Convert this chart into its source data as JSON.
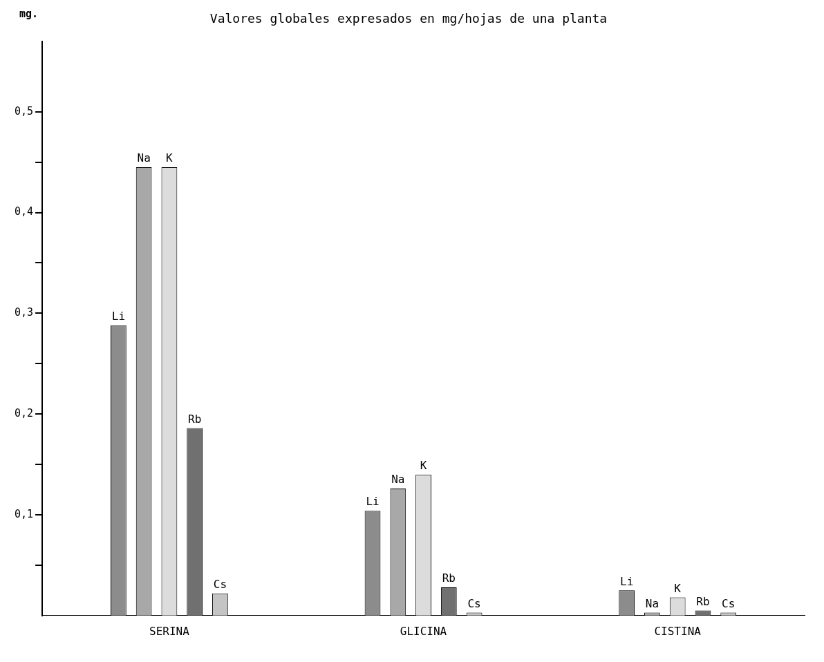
{
  "chart_data": {
    "type": "bar",
    "title": "Valores globales expresados en mg/hojas de una planta",
    "ylabel": "mg.",
    "categories": [
      "SERINA",
      "GLICINA",
      "CISTINA"
    ],
    "series": [
      {
        "name": "Li",
        "color": "#8c8c8c",
        "values": [
          0.288,
          0.104,
          0.025
        ]
      },
      {
        "name": "Na",
        "color": "#a8a8a8",
        "values": [
          0.445,
          0.126,
          0.003
        ]
      },
      {
        "name": "K",
        "color": "#dcdcdc",
        "values": [
          0.445,
          0.14,
          0.018
        ]
      },
      {
        "name": "Rb",
        "color": "#707070",
        "values": [
          0.186,
          0.028,
          0.005
        ]
      },
      {
        "name": "Cs",
        "color": "#c4c4c4",
        "values": [
          0.022,
          0.003,
          0.003
        ]
      }
    ],
    "ylim": [
      0,
      0.57
    ],
    "yticks": [
      {
        "value": 0.05,
        "label": null
      },
      {
        "value": 0.1,
        "label": "0,1"
      },
      {
        "value": 0.15,
        "label": null
      },
      {
        "value": 0.2,
        "label": "0,2"
      },
      {
        "value": 0.25,
        "label": null
      },
      {
        "value": 0.3,
        "label": "0,3"
      },
      {
        "value": 0.35,
        "label": null
      },
      {
        "value": 0.4,
        "label": "0,4"
      },
      {
        "value": 0.45,
        "label": null
      },
      {
        "value": 0.5,
        "label": "0,5"
      }
    ],
    "grid": false,
    "legend": false
  }
}
